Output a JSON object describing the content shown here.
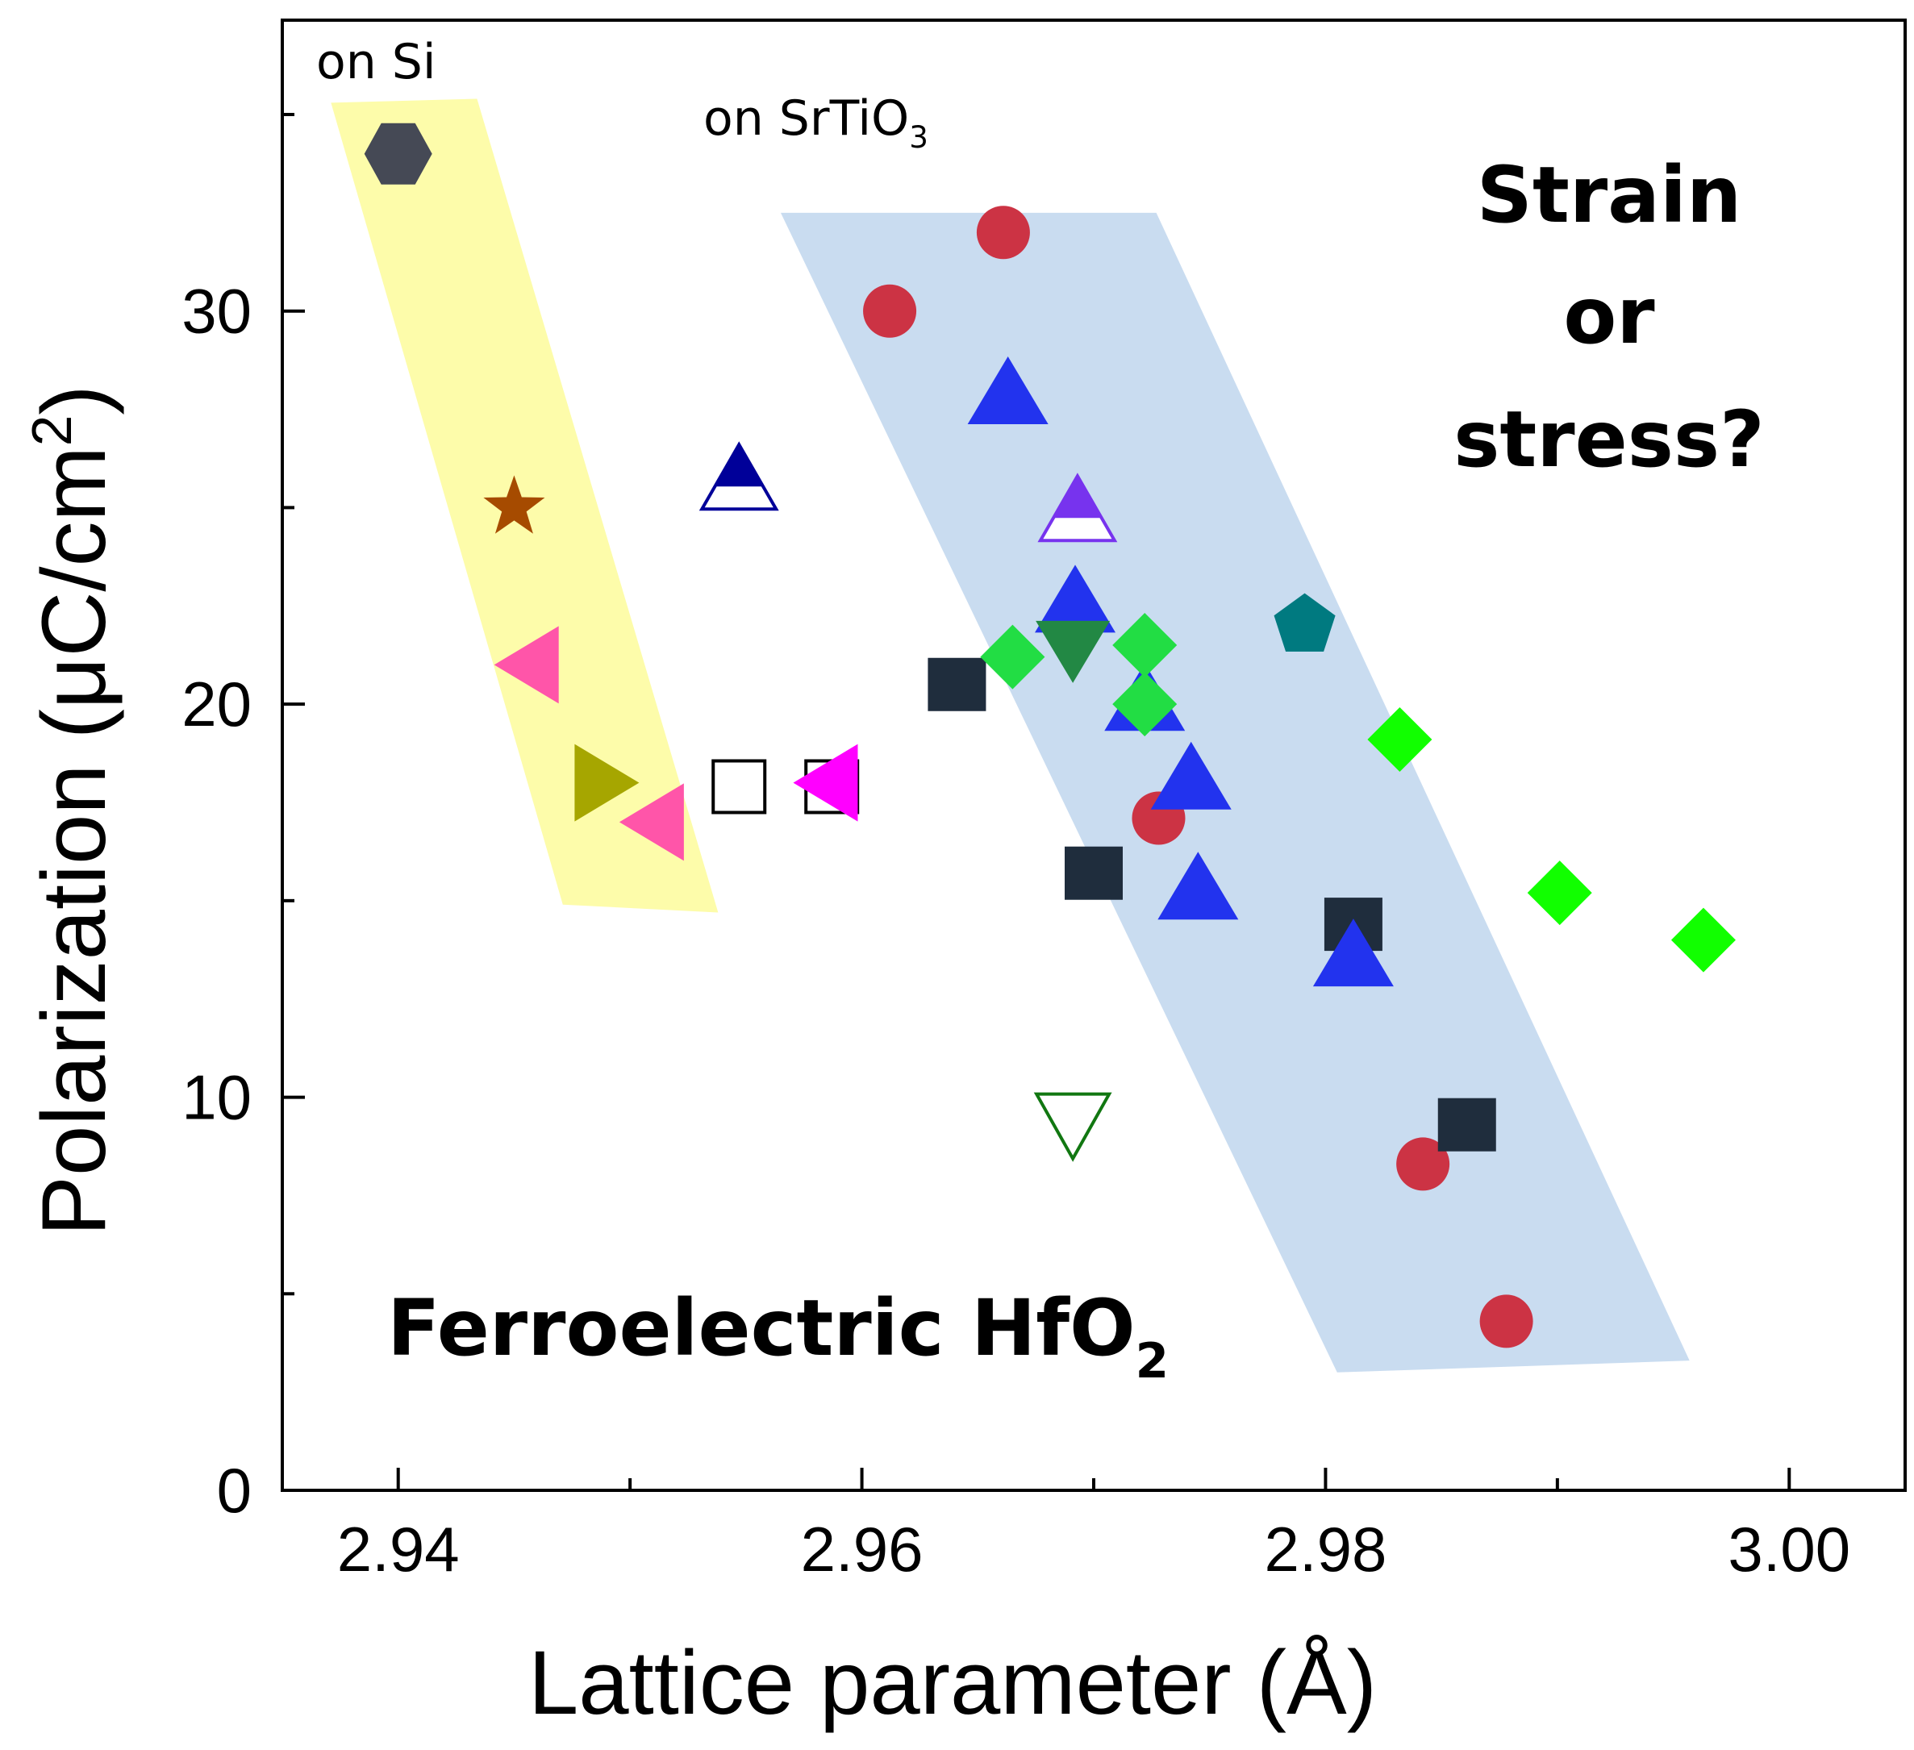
{
  "chart_data": {
    "type": "scatter",
    "title": "",
    "xlabel": "Lattice parameter (Å)",
    "ylabel_parts": [
      "Polarization (",
      "μ",
      "C/cm",
      "2",
      ")"
    ],
    "xlim": [
      2.935,
      3.005
    ],
    "ylim": [
      0,
      37.4
    ],
    "xticks": [
      2.94,
      2.96,
      2.98,
      3.0
    ],
    "xtick_labels": [
      "2.94",
      "2.96",
      "2.98",
      "3.00"
    ],
    "x_minor_ticks": [
      2.95,
      2.97,
      2.99
    ],
    "yticks": [
      0,
      10,
      20,
      30
    ],
    "ytick_labels": [
      "0",
      "10",
      "20",
      "30"
    ],
    "y_minor_ticks": [
      5,
      15,
      25,
      35
    ],
    "grid": false,
    "legend": "none",
    "annotations": {
      "on_si": "on Si",
      "on_sto_prefix": "on SrTiO",
      "on_sto_sub": "3",
      "strain_line1": "Strain",
      "strain_line2": "or",
      "strain_line3": "stress?",
      "hfo2_prefix": "Ferroelectric HfO",
      "hfo2_sub": "2"
    },
    "bands": [
      {
        "region": "on Si",
        "color": "#fdfcaa",
        "polygon": [
          [
            2.9371,
            35.3
          ],
          [
            2.9434,
            35.4
          ],
          [
            2.9538,
            14.7
          ],
          [
            2.9471,
            14.9
          ]
        ]
      },
      {
        "region": "on SrTiO3",
        "color": "#c9dcf0",
        "polygon": [
          [
            2.9565,
            32.5
          ],
          [
            2.9727,
            32.5
          ],
          [
            2.9957,
            3.3
          ],
          [
            2.9805,
            3.0
          ]
        ]
      }
    ],
    "series": [
      {
        "marker": "hexagon",
        "color": "#454955",
        "points": [
          [
            2.94,
            34.0
          ]
        ]
      },
      {
        "marker": "star",
        "color": "#a64b00",
        "points": [
          [
            2.945,
            25.0
          ]
        ]
      },
      {
        "marker": "triangle-left",
        "color": "#ff55a9",
        "points": [
          [
            2.9456,
            21.0
          ],
          [
            2.951,
            17.0
          ]
        ]
      },
      {
        "marker": "triangle-right",
        "color": "#a6a600",
        "points": [
          [
            2.949,
            18.0
          ]
        ]
      },
      {
        "marker": "square-open",
        "color": "#000000",
        "points": [
          [
            2.9547,
            17.9
          ],
          [
            2.9587,
            17.9
          ]
        ]
      },
      {
        "marker": "triangle-left",
        "color": "#ff00ff",
        "points": [
          [
            2.9585,
            18.0
          ]
        ]
      },
      {
        "marker": "triangle-up-half",
        "color": "#000099",
        "points": [
          [
            2.9547,
            25.7
          ]
        ]
      },
      {
        "marker": "circle",
        "color": "#cc3344",
        "points": [
          [
            2.9612,
            30.0
          ],
          [
            2.9661,
            32.0
          ],
          [
            2.9728,
            17.1
          ],
          [
            2.9842,
            8.3
          ],
          [
            2.9878,
            4.3
          ]
        ]
      },
      {
        "marker": "square",
        "color": "#1f2d3d",
        "points": [
          [
            2.9641,
            20.5
          ],
          [
            2.97,
            15.7
          ],
          [
            2.9812,
            14.4
          ],
          [
            2.9861,
            9.3
          ]
        ]
      },
      {
        "marker": "triangle-up",
        "color": "#2233ee",
        "points": [
          [
            2.9663,
            27.9
          ],
          [
            2.9692,
            22.6
          ],
          [
            2.9722,
            20.1
          ],
          [
            2.9742,
            18.1
          ],
          [
            2.9745,
            15.3
          ],
          [
            2.9812,
            13.6
          ]
        ]
      },
      {
        "marker": "triangle-up-half",
        "color": "#7733ee",
        "points": [
          [
            2.9693,
            24.9
          ]
        ]
      },
      {
        "marker": "triangle-down",
        "color": "#228844",
        "points": [
          [
            2.9691,
            21.4
          ]
        ]
      },
      {
        "marker": "triangle-down-open",
        "color": "#117711",
        "points": [
          [
            2.9691,
            9.3
          ]
        ]
      },
      {
        "marker": "diamond",
        "color": "#22dd44",
        "points": [
          [
            2.9665,
            21.2
          ],
          [
            2.9722,
            21.5
          ],
          [
            2.9722,
            20.0
          ]
        ]
      },
      {
        "marker": "pentagon",
        "color": "#007a80",
        "points": [
          [
            2.9791,
            22.0
          ]
        ]
      },
      {
        "marker": "diamond",
        "color": "#11ff00",
        "points": [
          [
            2.9832,
            19.1
          ],
          [
            2.9901,
            15.2
          ],
          [
            2.9963,
            14.0
          ]
        ]
      }
    ]
  }
}
